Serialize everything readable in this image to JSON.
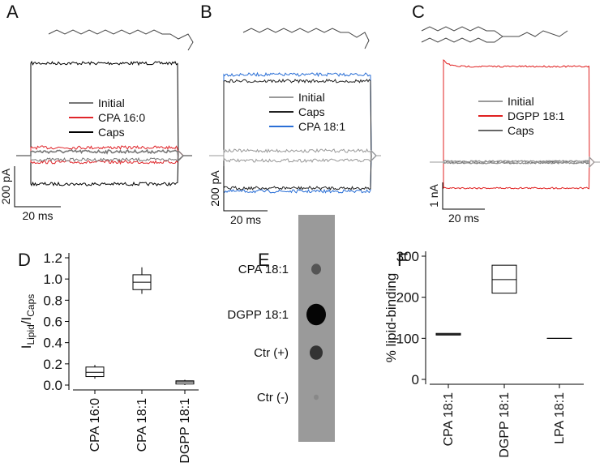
{
  "panel_labels": [
    "A",
    "B",
    "C",
    "D",
    "E",
    "F"
  ],
  "traces": [
    {
      "legend": [
        {
          "name": "Initial",
          "color": "#777777"
        },
        {
          "name": "CPA 16:0",
          "color": "#e0262b"
        },
        {
          "name": "Caps",
          "color": "#000000"
        }
      ],
      "scale_y": "200 pA",
      "scale_x": "20 ms"
    },
    {
      "legend": [
        {
          "name": "Initial",
          "color": "#999999"
        },
        {
          "name": "Caps",
          "color": "#222222"
        },
        {
          "name": "CPA 18:1",
          "color": "#2a6fd6"
        }
      ],
      "scale_y": "200 pA",
      "scale_x": "20 ms"
    },
    {
      "legend": [
        {
          "name": "Initial",
          "color": "#999999"
        },
        {
          "name": "DGPP 18:1",
          "color": "#e02020"
        },
        {
          "name": "Caps",
          "color": "#666666"
        }
      ],
      "scale_y": "1 nA",
      "scale_x": "20 ms"
    }
  ],
  "blot": {
    "labels": [
      "CPA 18:1",
      "DGPP 18:1",
      "Ctr (+)",
      "Ctr (-)"
    ]
  },
  "chart_data": [
    {
      "type": "box",
      "ylabel": [
        "I",
        "Lipid",
        "/I",
        "Caps"
      ],
      "categories": [
        "CPA 16:0",
        "CPA 18:1",
        "DGPP 18:1"
      ],
      "min": [
        0.06,
        0.86,
        0.0
      ],
      "q1": [
        0.08,
        0.9,
        0.01
      ],
      "median": [
        0.12,
        0.97,
        0.03
      ],
      "q3": [
        0.17,
        1.04,
        0.04
      ],
      "max": [
        0.19,
        1.11,
        0.05
      ],
      "color": "#000000",
      "ylim": [
        0,
        1.2
      ],
      "yticks": [
        {
          "value": 0,
          "label": "0.0"
        },
        0.2,
        0.4,
        0.6,
        0.8,
        {
          "value": 1,
          "label": "1.0"
        },
        1.2
      ]
    },
    {
      "type": "box",
      "ylabel": "% lipid-binding",
      "categories": [
        "CPA 18:1",
        "DGPP 18:1",
        "LPA 18:1"
      ],
      "q1": [
        108,
        210,
        100
      ],
      "median": [
        110,
        243,
        100
      ],
      "q3": [
        112,
        278,
        100
      ],
      "color": "#000000",
      "ylim": [
        0,
        300
      ],
      "yticks": [
        0,
        100,
        200,
        300
      ]
    }
  ]
}
